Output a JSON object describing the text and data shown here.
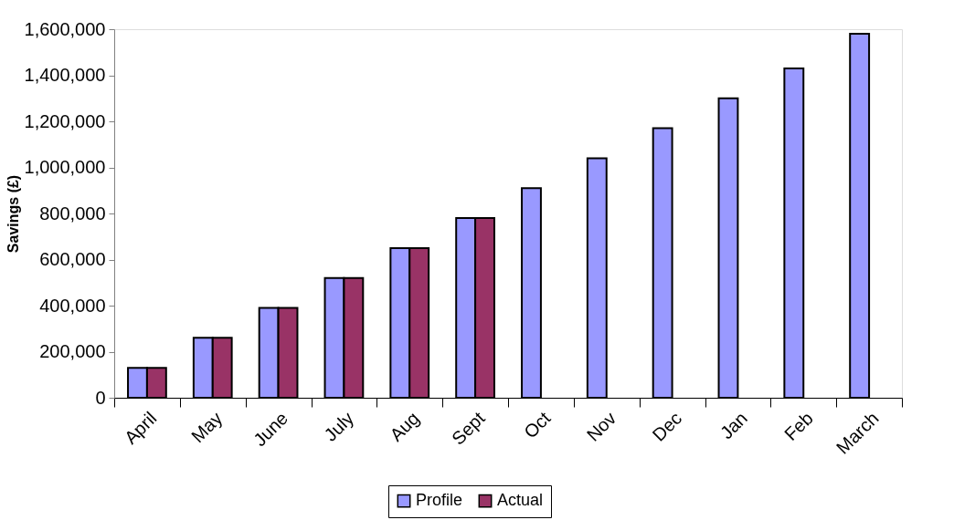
{
  "chart_data": {
    "type": "bar",
    "ylabel": "Savings (£)",
    "categories": [
      "April",
      "May",
      "June",
      "July",
      "Aug",
      "Sept",
      "Oct",
      "Nov",
      "Dec",
      "Jan",
      "Feb",
      "March"
    ],
    "series": [
      {
        "name": "Profile",
        "color": "#9999ff",
        "values": [
          130000,
          260000,
          390000,
          520000,
          650000,
          780000,
          910000,
          1040000,
          1170000,
          1300000,
          1430000,
          1580000
        ]
      },
      {
        "name": "Actual",
        "color": "#993366",
        "values": [
          130000,
          260000,
          390000,
          520000,
          650000,
          780000,
          null,
          null,
          null,
          null,
          null,
          null
        ]
      }
    ],
    "ylim": [
      0,
      1600000
    ],
    "yticks": [
      0,
      {
        "value": 200000,
        "label": "200,000"
      },
      {
        "value": 400000,
        "label": "400,000"
      },
      {
        "value": 600000,
        "label": "600,000"
      },
      {
        "value": 800000,
        "label": "800,000"
      },
      {
        "value": 1000000,
        "label": "1,000,000"
      },
      {
        "value": 1200000,
        "label": "1,200,000"
      },
      {
        "value": 1400000,
        "label": "1,400,000"
      },
      {
        "value": 1600000,
        "label": "1,600,000"
      }
    ],
    "grid": false,
    "legend": "bottom"
  }
}
